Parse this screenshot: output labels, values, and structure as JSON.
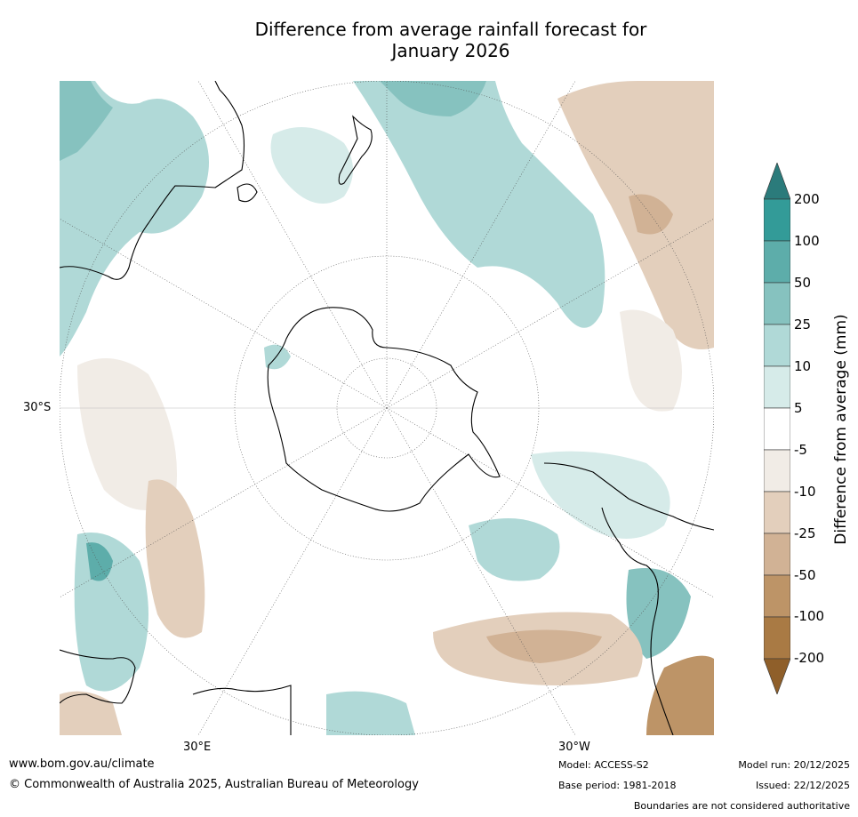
{
  "title": {
    "line1": "Difference from average rainfall forecast for",
    "line2": "January 2026"
  },
  "map": {
    "projection": "south-polar-stereographic",
    "lat_label": "30°S",
    "lon_labels": [
      "30°E",
      "30°W"
    ],
    "icons": [
      "antarctica-landmass",
      "australia-coastline",
      "south-america-coastline",
      "africa-coastline",
      "new-zealand-coastline"
    ]
  },
  "colorbar": {
    "title": "Difference from average (mm)",
    "ticks": [
      "200",
      "100",
      "50",
      "25",
      "10",
      "5",
      "-5",
      "-10",
      "-25",
      "-50",
      "-100",
      "-200"
    ],
    "colors": [
      "#2b7b7b",
      "#339b98",
      "#5dadaa",
      "#86c2bf",
      "#b0d9d7",
      "#d6ebe9",
      "#ffffff",
      "#f1ece6",
      "#e3cfbc",
      "#d1b295",
      "#bd9467",
      "#a97a44",
      "#8f5f2a"
    ]
  },
  "footer": {
    "website": "www.bom.gov.au/climate",
    "copyright": "© Commonwealth of Australia 2025, Australian Bureau of Meteorology",
    "model": "Model: ACCESS-S2",
    "base_period": "Base period: 1981-2018",
    "model_run": "Model run: 20/12/2025",
    "issued": "Issued: 22/12/2025",
    "disclaimer": "Boundaries are not considered authoritative"
  }
}
